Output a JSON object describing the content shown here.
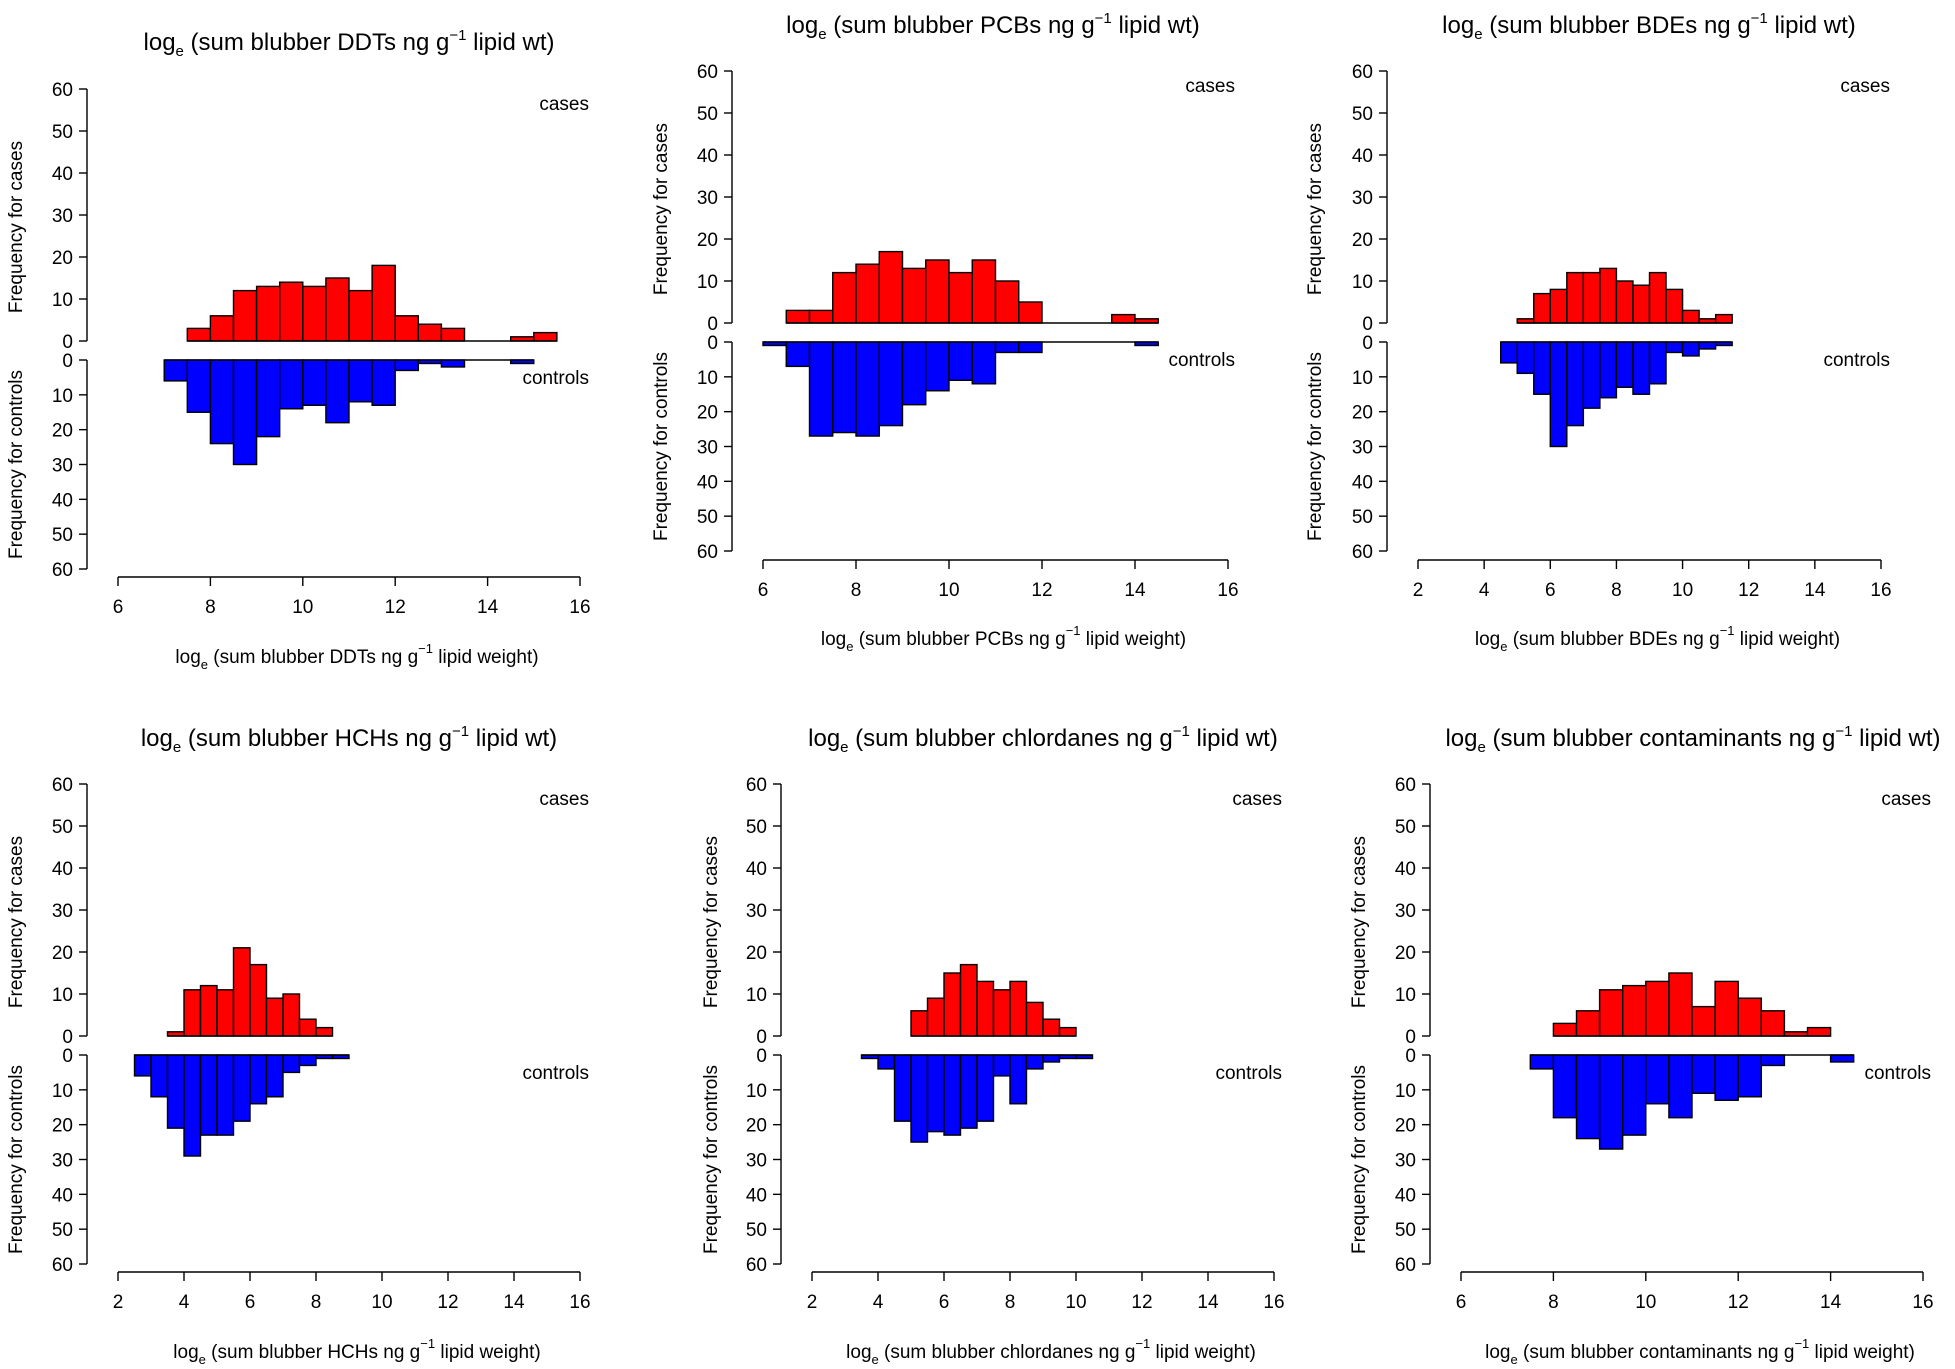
{
  "chart_data": [
    {
      "type": "bar",
      "title": {
        "pre": "log",
        "sub": "e",
        "mid": " (sum blubber DDTs ng g",
        "sup": "−1",
        "post": " lipid wt)"
      },
      "xlabel": {
        "pre": "log",
        "sub": "e",
        "mid": " (sum blubber DDTs ng g",
        "sup": "−1",
        "post": " lipid weight)"
      },
      "ylabel_cases": "Frequency for cases",
      "ylabel_controls": "Frequency for controls",
      "label_cases": "cases",
      "label_controls": "controls",
      "xlim": [
        6,
        16
      ],
      "xticks": [
        6,
        8,
        10,
        12,
        14,
        16
      ],
      "ylim": [
        0,
        60
      ],
      "yticks": [
        0,
        10,
        20,
        30,
        40,
        50,
        60
      ],
      "bin_width": 0.5,
      "cases": {
        "start": 7.5,
        "values": [
          3,
          6,
          12,
          13,
          14,
          13,
          15,
          12,
          18,
          6,
          4,
          3,
          0,
          0,
          1,
          2
        ]
      },
      "controls": {
        "start": 7.0,
        "values": [
          6,
          15,
          24,
          30,
          22,
          14,
          13,
          18,
          12,
          13,
          3,
          1,
          2,
          0,
          0,
          1
        ]
      }
    },
    {
      "type": "bar",
      "title": {
        "pre": "log",
        "sub": "e",
        "mid": " (sum blubber PCBs ng g",
        "sup": "−1",
        "post": " lipid wt)"
      },
      "xlabel": {
        "pre": "log",
        "sub": "e",
        "mid": " (sum blubber PCBs ng g",
        "sup": "−1",
        "post": " lipid weight)"
      },
      "ylabel_cases": "Frequency for cases",
      "ylabel_controls": "Frequency for controls",
      "label_cases": "cases",
      "label_controls": "controls",
      "xlim": [
        6,
        16
      ],
      "xticks": [
        6,
        8,
        10,
        12,
        14,
        16
      ],
      "ylim": [
        0,
        60
      ],
      "yticks": [
        0,
        10,
        20,
        30,
        40,
        50,
        60
      ],
      "bin_width": 0.5,
      "cases": {
        "start": 6.5,
        "values": [
          3,
          3,
          12,
          14,
          17,
          13,
          15,
          12,
          15,
          10,
          5,
          0,
          0,
          0,
          2,
          1
        ]
      },
      "controls": {
        "start": 6.0,
        "values": [
          1,
          7,
          27,
          26,
          27,
          24,
          18,
          14,
          11,
          12,
          3,
          3,
          0,
          0,
          0,
          0,
          1
        ]
      }
    },
    {
      "type": "bar",
      "title": {
        "pre": "log",
        "sub": "e",
        "mid": " (sum blubber BDEs ng g",
        "sup": "−1",
        "post": " lipid wt)"
      },
      "xlabel": {
        "pre": "log",
        "sub": "e",
        "mid": " (sum blubber BDEs ng g",
        "sup": "−1",
        "post": " lipid weight)"
      },
      "ylabel_cases": "Frequency for cases",
      "ylabel_controls": "Frequency for controls",
      "label_cases": "cases",
      "label_controls": "controls",
      "xlim": [
        2,
        16
      ],
      "xticks": [
        2,
        4,
        6,
        8,
        10,
        12,
        14,
        16
      ],
      "ylim": [
        0,
        60
      ],
      "yticks": [
        0,
        10,
        20,
        30,
        40,
        50,
        60
      ],
      "bin_width": 0.5,
      "cases": {
        "start": 5.0,
        "values": [
          1,
          7,
          8,
          12,
          12,
          13,
          10,
          9,
          12,
          8,
          3,
          1,
          2
        ]
      },
      "controls": {
        "start": 4.5,
        "values": [
          6,
          9,
          15,
          30,
          24,
          19,
          16,
          13,
          15,
          12,
          3,
          4,
          2,
          1
        ]
      }
    },
    {
      "type": "bar",
      "title": {
        "pre": "log",
        "sub": "e",
        "mid": " (sum blubber HCHs ng g",
        "sup": "−1",
        "post": " lipid wt)"
      },
      "xlabel": {
        "pre": "log",
        "sub": "e",
        "mid": " (sum blubber HCHs ng g",
        "sup": "−1",
        "post": " lipid weight)"
      },
      "ylabel_cases": "Frequency for cases",
      "ylabel_controls": "Frequency for controls",
      "label_cases": "cases",
      "label_controls": "controls",
      "xlim": [
        2,
        16
      ],
      "xticks": [
        2,
        4,
        6,
        8,
        10,
        12,
        14,
        16
      ],
      "ylim": [
        0,
        60
      ],
      "yticks": [
        0,
        10,
        20,
        30,
        40,
        50,
        60
      ],
      "bin_width": 0.5,
      "cases": {
        "start": 3.5,
        "values": [
          1,
          11,
          12,
          11,
          21,
          17,
          9,
          10,
          4,
          2
        ]
      },
      "controls": {
        "start": 2.5,
        "values": [
          6,
          12,
          21,
          29,
          23,
          23,
          19,
          14,
          12,
          5,
          3,
          1,
          1
        ]
      }
    },
    {
      "type": "bar",
      "title": {
        "pre": "log",
        "sub": "e",
        "mid": " (sum blubber chlordanes ng g",
        "sup": "−1",
        "post": " lipid wt)"
      },
      "xlabel": {
        "pre": "log",
        "sub": "e",
        "mid": " (sum blubber chlordanes ng g",
        "sup": "−1",
        "post": " lipid weight)"
      },
      "ylabel_cases": "Frequency for cases",
      "ylabel_controls": "Frequency for controls",
      "label_cases": "cases",
      "label_controls": "controls",
      "xlim": [
        2,
        16
      ],
      "xticks": [
        2,
        4,
        6,
        8,
        10,
        12,
        14,
        16
      ],
      "ylim": [
        0,
        60
      ],
      "yticks": [
        0,
        10,
        20,
        30,
        40,
        50,
        60
      ],
      "bin_width": 0.5,
      "cases": {
        "start": 5.0,
        "values": [
          6,
          9,
          15,
          17,
          13,
          11,
          13,
          8,
          4,
          2
        ]
      },
      "controls": {
        "start": 3.5,
        "values": [
          1,
          4,
          19,
          25,
          22,
          23,
          21,
          19,
          6,
          14,
          4,
          2,
          1,
          1
        ]
      }
    },
    {
      "type": "bar",
      "title": {
        "pre": "log",
        "sub": "e",
        "mid": " (sum blubber contaminants ng g",
        "sup": "−1",
        "post": " lipid wt)"
      },
      "xlabel": {
        "pre": "log",
        "sub": "e",
        "mid": " (sum blubber contaminants ng g",
        "sup": "−1",
        "post": " lipid weight)"
      },
      "ylabel_cases": "Frequency for cases",
      "ylabel_controls": "Frequency for controls",
      "label_cases": "cases",
      "label_controls": "controls",
      "xlim": [
        6,
        16
      ],
      "xticks": [
        6,
        8,
        10,
        12,
        14,
        16
      ],
      "ylim": [
        0,
        60
      ],
      "yticks": [
        0,
        10,
        20,
        30,
        40,
        50,
        60
      ],
      "bin_width": 0.5,
      "cases": {
        "start": 8.0,
        "values": [
          3,
          6,
          11,
          12,
          13,
          15,
          7,
          13,
          9,
          6,
          1,
          2
        ]
      },
      "controls": {
        "start": 7.5,
        "values": [
          4,
          18,
          24,
          27,
          23,
          14,
          18,
          11,
          13,
          12,
          3,
          0,
          0,
          2
        ]
      }
    }
  ],
  "colors": {
    "cases": "#ff0000",
    "controls": "#0000ff",
    "outline": "#000000"
  }
}
